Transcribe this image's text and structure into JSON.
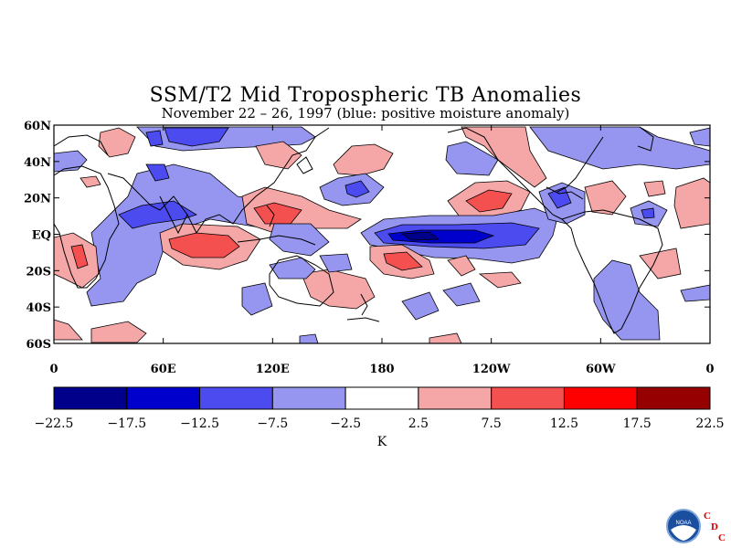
{
  "header": {
    "title": "SSM/T2 Mid Tropospheric TB Anomalies",
    "subtitle": "November 22 – 26, 1997 (blue: positive moisture anomaly)"
  },
  "map": {
    "lat_labels": [
      "60N",
      "40N",
      "20N",
      "EQ",
      "20S",
      "40S",
      "60S"
    ],
    "lon_labels": [
      "0",
      "60E",
      "120E",
      "180",
      "120W",
      "60W",
      "0"
    ],
    "lat_range": [
      -60,
      60
    ],
    "lon_range": [
      0,
      360
    ]
  },
  "colorbar": {
    "levels": [
      "−22.5",
      "−17.5",
      "−12.5",
      "−7.5",
      "−2.5",
      "2.5",
      "7.5",
      "12.5",
      "17.5",
      "22.5"
    ],
    "colors": [
      "#00008b",
      "#0000cd",
      "#4b4bf0",
      "#9696f0",
      "#ffffff",
      "#f5a6a6",
      "#f55050",
      "#ff0000",
      "#960000"
    ],
    "unit": "K"
  },
  "logo": {
    "noaa": "NOAA",
    "letters": [
      "C",
      "D",
      "C"
    ],
    "accent": "#cc0000"
  }
}
